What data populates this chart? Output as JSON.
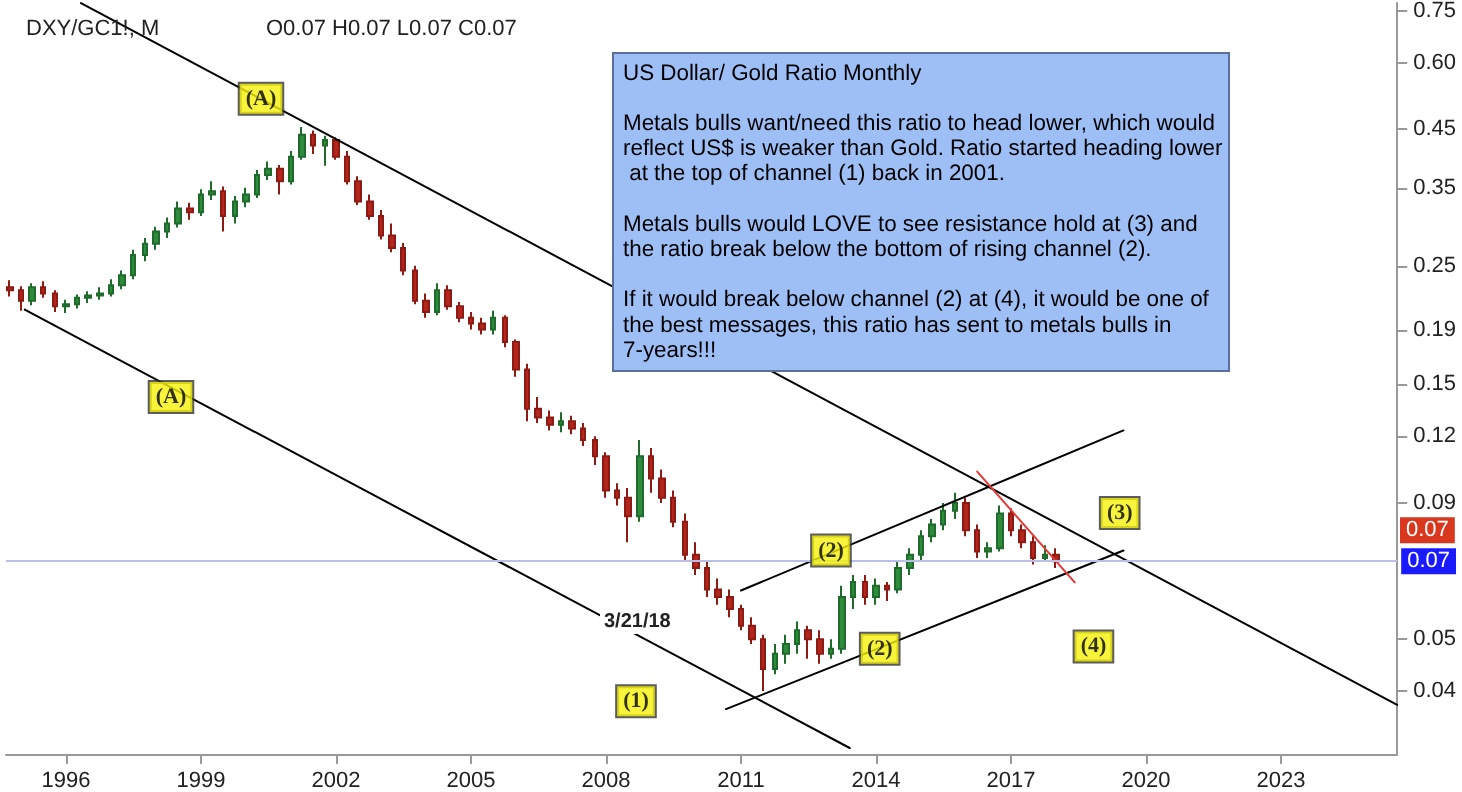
{
  "chart_data": {
    "type": "candlestick",
    "title": "DXY/GC1!, M",
    "subtitle": "O0.07 H0.07 L0.07 C0.07",
    "xlim": [
      "1994-09",
      "2025-08"
    ],
    "xticks": [
      "1996",
      "1999",
      "2002",
      "2005",
      "2008",
      "2011",
      "2014",
      "2017",
      "2020",
      "2023"
    ],
    "log": "y",
    "ylim": [
      0.0305,
      0.776
    ],
    "yticks": [
      0.04,
      0.05,
      0.09,
      0.12,
      0.15,
      0.19,
      0.25,
      0.35,
      0.45,
      {
        "value": 0.6,
        "label": "0.60"
      },
      0.75
    ],
    "grid": false,
    "series": [
      {
        "type": "candlestick",
        "x": [
          "1994-10",
          "1995-01",
          "1995-04",
          "1995-07",
          "1995-10",
          "1996-01",
          "1996-04",
          "1996-07",
          "1996-10",
          "1997-01",
          "1997-04",
          "1997-07",
          "1997-10",
          "1998-01",
          "1998-04",
          "1998-07",
          "1998-10",
          "1999-01",
          "1999-04",
          "1999-07",
          "1999-10",
          "2000-01",
          "2000-04",
          "2000-07",
          "2000-10",
          "2001-01",
          "2001-04",
          "2001-07",
          "2001-10",
          "2002-01",
          "2002-04",
          "2002-07",
          "2002-10",
          "2003-01",
          "2003-04",
          "2003-07",
          "2003-10",
          "2004-01",
          "2004-04",
          "2004-07",
          "2004-10",
          "2005-01",
          "2005-04",
          "2005-07",
          "2005-10",
          "2006-01",
          "2006-04",
          "2006-07",
          "2006-10",
          "2007-01",
          "2007-04",
          "2007-07",
          "2007-10",
          "2008-01",
          "2008-04",
          "2008-07",
          "2008-10",
          "2009-01",
          "2009-04",
          "2009-07",
          "2009-10",
          "2010-01",
          "2010-04",
          "2010-07",
          "2010-10",
          "2011-01",
          "2011-04",
          "2011-07",
          "2011-10",
          "2012-01",
          "2012-04",
          "2012-07",
          "2012-10",
          "2013-01",
          "2013-04",
          "2013-07",
          "2013-10",
          "2014-01",
          "2014-04",
          "2014-07",
          "2014-10",
          "2015-01",
          "2015-04",
          "2015-07",
          "2015-10",
          "2016-01",
          "2016-04",
          "2016-07",
          "2016-10",
          "2017-01",
          "2017-04",
          "2017-07",
          "2017-10",
          "2018-01"
        ],
        "ohlc": [
          [
            0.228,
            0.235,
            0.219,
            0.225
          ],
          [
            0.225,
            0.229,
            0.206,
            0.215
          ],
          [
            0.215,
            0.232,
            0.211,
            0.228
          ],
          [
            0.228,
            0.234,
            0.218,
            0.222
          ],
          [
            0.222,
            0.225,
            0.205,
            0.21
          ],
          [
            0.21,
            0.216,
            0.204,
            0.212
          ],
          [
            0.212,
            0.221,
            0.208,
            0.218
          ],
          [
            0.218,
            0.224,
            0.213,
            0.22
          ],
          [
            0.22,
            0.228,
            0.216,
            0.222
          ],
          [
            0.222,
            0.236,
            0.219,
            0.23
          ],
          [
            0.23,
            0.245,
            0.226,
            0.24
          ],
          [
            0.24,
            0.268,
            0.236,
            0.262
          ],
          [
            0.262,
            0.282,
            0.255,
            0.275
          ],
          [
            0.275,
            0.296,
            0.268,
            0.29
          ],
          [
            0.29,
            0.308,
            0.282,
            0.3
          ],
          [
            0.3,
            0.33,
            0.295,
            0.32
          ],
          [
            0.32,
            0.328,
            0.305,
            0.315
          ],
          [
            0.315,
            0.348,
            0.31,
            0.34
          ],
          [
            0.34,
            0.36,
            0.332,
            0.345
          ],
          [
            0.345,
            0.352,
            0.29,
            0.31
          ],
          [
            0.31,
            0.338,
            0.3,
            0.33
          ],
          [
            0.33,
            0.35,
            0.322,
            0.34
          ],
          [
            0.34,
            0.378,
            0.335,
            0.37
          ],
          [
            0.37,
            0.392,
            0.362,
            0.38
          ],
          [
            0.38,
            0.386,
            0.34,
            0.36
          ],
          [
            0.36,
            0.41,
            0.355,
            0.4
          ],
          [
            0.4,
            0.455,
            0.395,
            0.44
          ],
          [
            0.44,
            0.448,
            0.405,
            0.42
          ],
          [
            0.42,
            0.438,
            0.385,
            0.43
          ],
          [
            0.43,
            0.435,
            0.395,
            0.4
          ],
          [
            0.4,
            0.41,
            0.355,
            0.36
          ],
          [
            0.36,
            0.368,
            0.325,
            0.33
          ],
          [
            0.33,
            0.34,
            0.305,
            0.31
          ],
          [
            0.31,
            0.318,
            0.28,
            0.285
          ],
          [
            0.285,
            0.3,
            0.265,
            0.27
          ],
          [
            0.27,
            0.276,
            0.24,
            0.245
          ],
          [
            0.245,
            0.25,
            0.212,
            0.215
          ],
          [
            0.215,
            0.222,
            0.2,
            0.205
          ],
          [
            0.205,
            0.232,
            0.202,
            0.225
          ],
          [
            0.225,
            0.23,
            0.207,
            0.21
          ],
          [
            0.21,
            0.214,
            0.196,
            0.2
          ],
          [
            0.2,
            0.205,
            0.19,
            0.195
          ],
          [
            0.195,
            0.2,
            0.186,
            0.19
          ],
          [
            0.19,
            0.206,
            0.186,
            0.2
          ],
          [
            0.2,
            0.202,
            0.176,
            0.18
          ],
          [
            0.18,
            0.182,
            0.155,
            0.16
          ],
          [
            0.16,
            0.164,
            0.128,
            0.135
          ],
          [
            0.135,
            0.142,
            0.127,
            0.13
          ],
          [
            0.13,
            0.134,
            0.123,
            0.126
          ],
          [
            0.126,
            0.133,
            0.122,
            0.128
          ],
          [
            0.128,
            0.131,
            0.121,
            0.124
          ],
          [
            0.124,
            0.127,
            0.115,
            0.118
          ],
          [
            0.118,
            0.12,
            0.106,
            0.11
          ],
          [
            0.11,
            0.112,
            0.092,
            0.095
          ],
          [
            0.095,
            0.098,
            0.089,
            0.092
          ],
          [
            0.092,
            0.096,
            0.076,
            0.085
          ],
          [
            0.085,
            0.118,
            0.083,
            0.11
          ],
          [
            0.11,
            0.114,
            0.094,
            0.1
          ],
          [
            0.1,
            0.104,
            0.09,
            0.092
          ],
          [
            0.092,
            0.095,
            0.081,
            0.083
          ],
          [
            0.083,
            0.086,
            0.07,
            0.072
          ],
          [
            0.072,
            0.076,
            0.066,
            0.068
          ],
          [
            0.068,
            0.07,
            0.06,
            0.062
          ],
          [
            0.062,
            0.065,
            0.058,
            0.06
          ],
          [
            0.06,
            0.062,
            0.055,
            0.057
          ],
          [
            0.057,
            0.058,
            0.052,
            0.053
          ],
          [
            0.053,
            0.055,
            0.049,
            0.05
          ],
          [
            0.05,
            0.051,
            0.04,
            0.044
          ],
          [
            0.044,
            0.049,
            0.043,
            0.047
          ],
          [
            0.047,
            0.051,
            0.045,
            0.049
          ],
          [
            0.049,
            0.054,
            0.047,
            0.052
          ],
          [
            0.052,
            0.053,
            0.046,
            0.05
          ],
          [
            0.05,
            0.052,
            0.045,
            0.047
          ],
          [
            0.047,
            0.05,
            0.046,
            0.048
          ],
          [
            0.048,
            0.063,
            0.047,
            0.06
          ],
          [
            0.06,
            0.066,
            0.057,
            0.064
          ],
          [
            0.064,
            0.066,
            0.058,
            0.06
          ],
          [
            0.06,
            0.065,
            0.058,
            0.063
          ],
          [
            0.063,
            0.064,
            0.059,
            0.062
          ],
          [
            0.062,
            0.07,
            0.061,
            0.068
          ],
          [
            0.068,
            0.074,
            0.066,
            0.072
          ],
          [
            0.072,
            0.08,
            0.07,
            0.078
          ],
          [
            0.078,
            0.084,
            0.076,
            0.082
          ],
          [
            0.082,
            0.09,
            0.08,
            0.087
          ],
          [
            0.087,
            0.094,
            0.084,
            0.09
          ],
          [
            0.09,
            0.092,
            0.078,
            0.08
          ],
          [
            0.08,
            0.082,
            0.071,
            0.073
          ],
          [
            0.073,
            0.076,
            0.071,
            0.074
          ],
          [
            0.074,
            0.089,
            0.073,
            0.086
          ],
          [
            0.086,
            0.088,
            0.078,
            0.08
          ],
          [
            0.08,
            0.082,
            0.074,
            0.076
          ],
          [
            0.076,
            0.078,
            0.069,
            0.071
          ],
          [
            0.071,
            0.075,
            0.07,
            0.072
          ],
          [
            0.072,
            0.074,
            0.068,
            0.07
          ]
        ]
      },
      {
        "type": "line",
        "color": "#000000",
        "x": [
          "1996-05",
          "2025-08"
        ],
        "values": [
          0.776,
          0.0377
        ]
      },
      {
        "type": "line",
        "color": "#000000",
        "x": [
          "1995-02",
          "2013-06"
        ],
        "values": [
          0.207,
          0.0313
        ]
      },
      {
        "type": "line",
        "color": "#000000",
        "x": [
          "2010-09",
          "2019-07"
        ],
        "values": [
          0.037,
          0.0733
        ]
      },
      {
        "type": "line",
        "color": "#000000",
        "x": [
          "2011-01",
          "2019-07"
        ],
        "values": [
          0.0617,
          0.123
        ]
      },
      {
        "type": "line",
        "color": "#e53935",
        "x": [
          "2016-04",
          "2018-06"
        ],
        "values": [
          0.103,
          0.0639
        ]
      }
    ],
    "ref_lines": [
      {
        "axis": "y",
        "value": 0.07,
        "label": "0.07",
        "color": "#b9bfe6"
      }
    ],
    "annotations": [
      "US Dollar/ Gold Ratio Monthly",
      "Metals bulls want/need this ratio to head lower, which would reflect US$ is weaker than Gold. Ratio started heading lower at the top of channel (1) back in 2001.",
      "Metals bulls would LOVE to see resistance hold at (3) and the ratio break below the bottom of rising channel (2).",
      "If it would break below channel (2) at (4), it would be one of the best messages, this ratio has sent to metals bulls in 7-years!!!",
      "3/21/18",
      {
        "text": "(A)",
        "x": "2000-05",
        "y": 0.514
      },
      {
        "text": "(A)",
        "x": "1998-05",
        "y": 0.142
      },
      {
        "text": "(1)",
        "x": "2008-09",
        "y": 0.0383
      },
      {
        "text": "(2)",
        "x": "2013-01",
        "y": 0.0733
      },
      {
        "text": "(2)",
        "x": "2014-02",
        "y": 0.048
      },
      {
        "text": "(3)",
        "x": "2019-06",
        "y": 0.0862
      },
      {
        "text": "(4)",
        "x": "2018-11",
        "y": 0.0485
      },
      "0.07"
    ]
  }
}
